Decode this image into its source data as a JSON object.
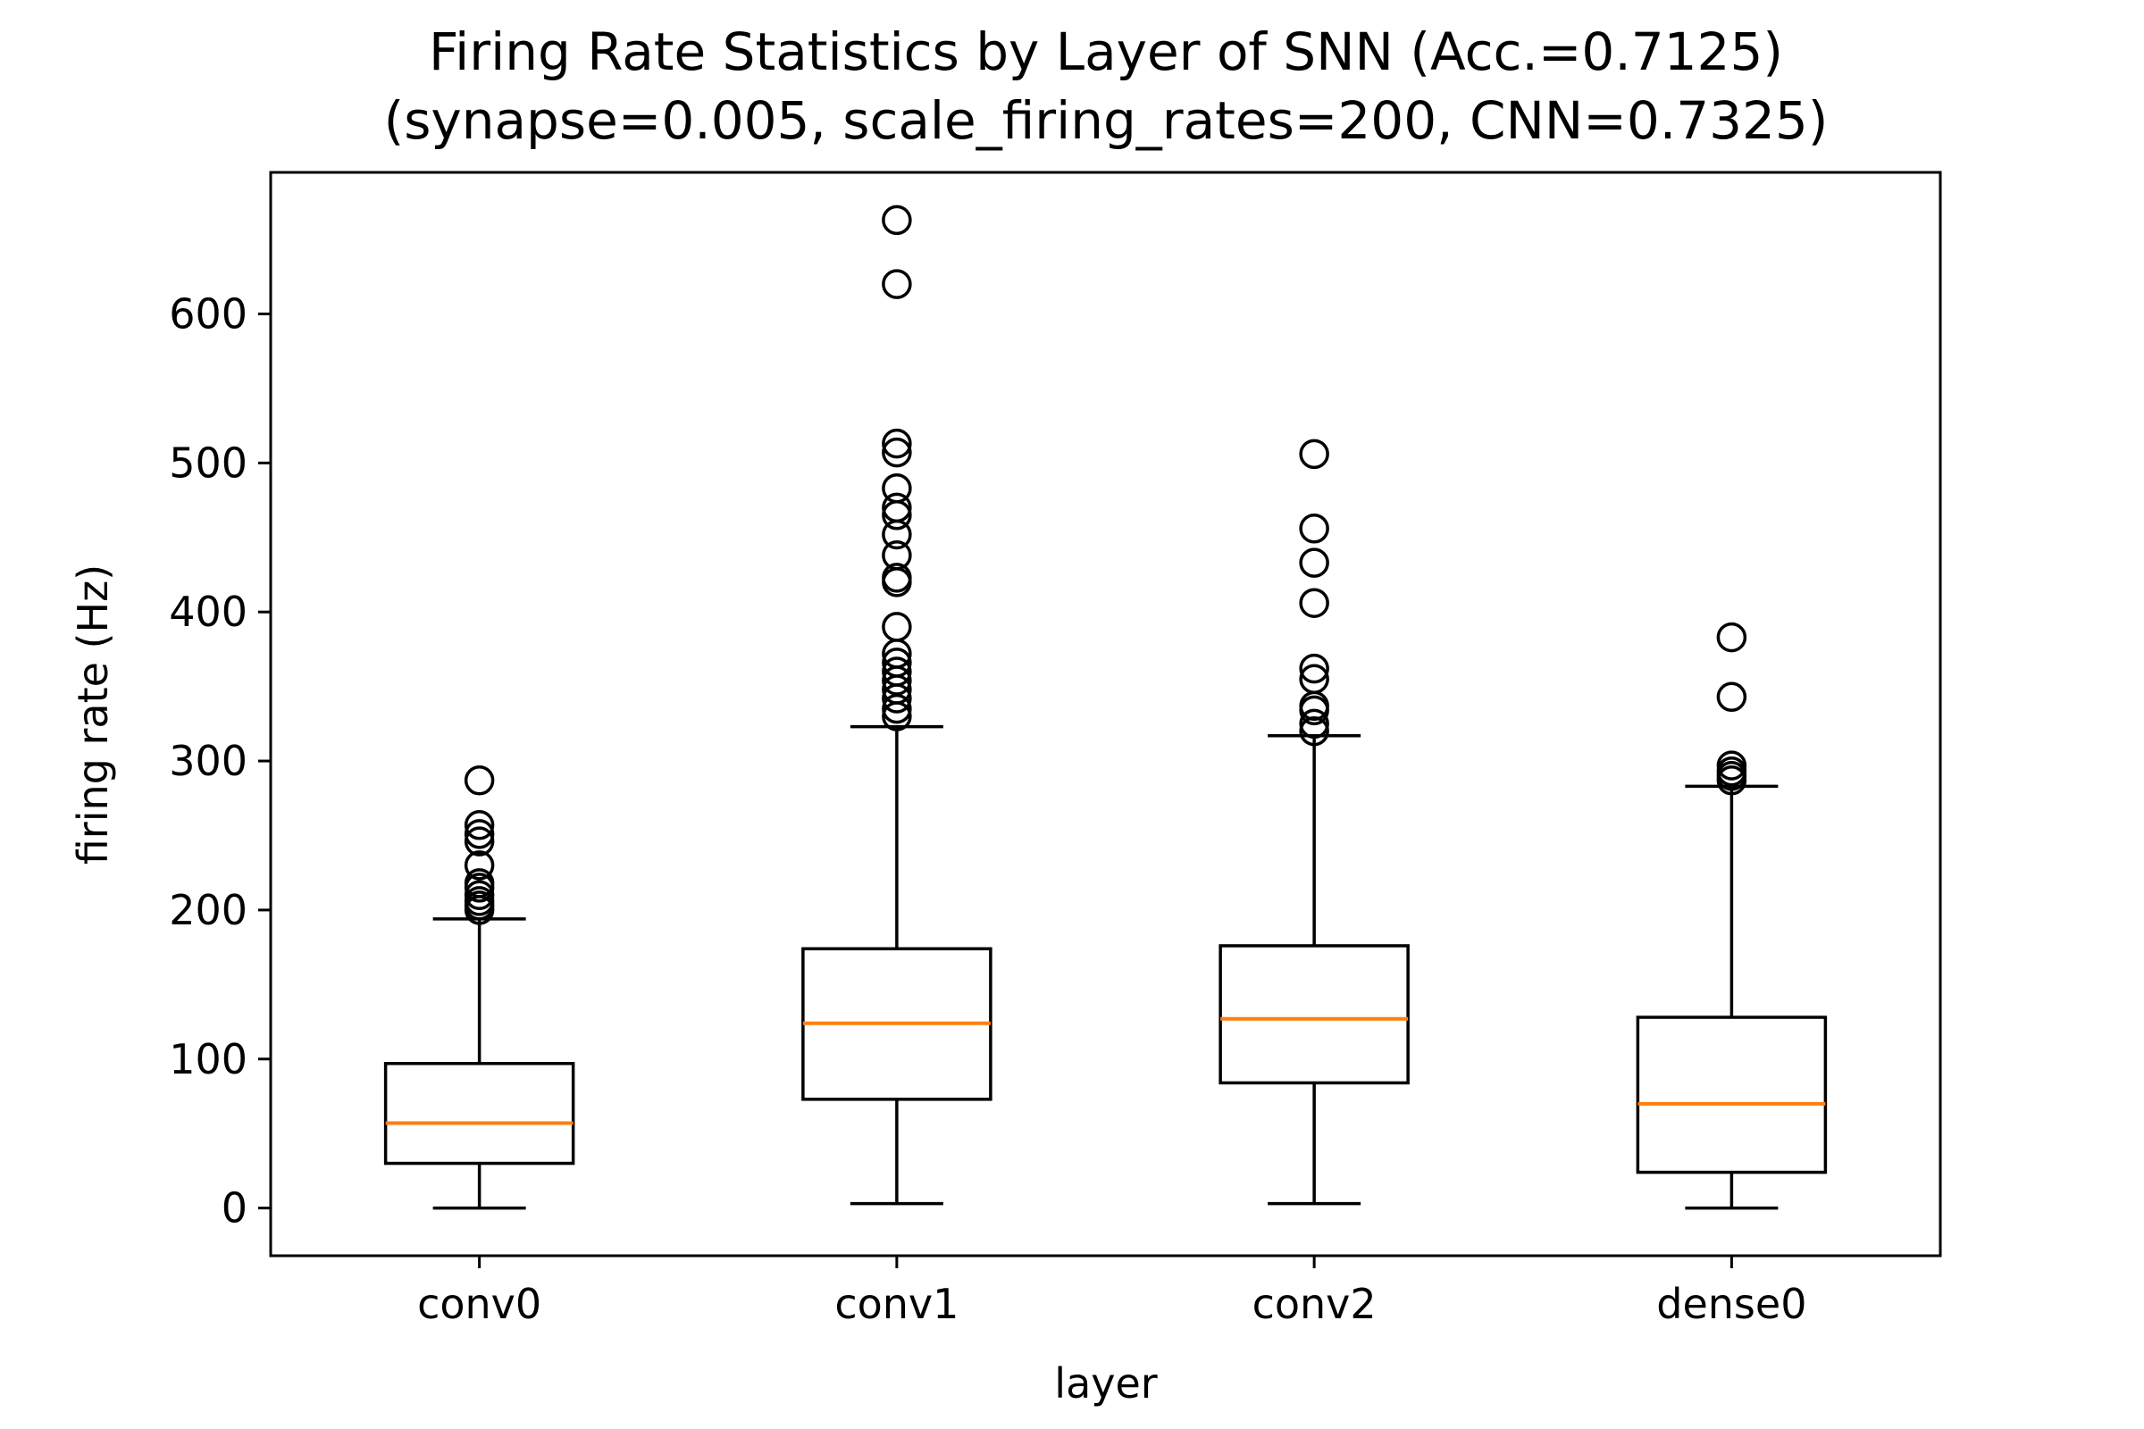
{
  "chart_data": {
    "type": "box",
    "title": "Firing Rate Statistics by Layer of SNN (Acc.=0.7125)",
    "subtitle": "(synapse=0.005, scale_firing_rates=200, CNN=0.7325)",
    "xlabel": "layer",
    "ylabel": "firing rate (Hz)",
    "categories": [
      "conv0",
      "conv1",
      "conv2",
      "dense0"
    ],
    "yticks": [
      0,
      100,
      200,
      300,
      400,
      500,
      600
    ],
    "ylim": [
      -32,
      695
    ],
    "grid": false,
    "boxes": [
      {
        "category": "conv0",
        "whisker_low": 0,
        "q1": 30,
        "median": 57,
        "q3": 97,
        "whisker_high": 194,
        "outliers": [
          200,
          203,
          206,
          210,
          215,
          218,
          230,
          246,
          251,
          257,
          287
        ]
      },
      {
        "category": "conv1",
        "whisker_low": 3,
        "q1": 73,
        "median": 124,
        "q3": 174,
        "whisker_high": 323,
        "outliers": [
          330,
          335,
          342,
          348,
          354,
          360,
          366,
          372,
          390,
          420,
          423,
          438,
          452,
          465,
          470,
          483,
          507,
          513,
          620,
          663
        ]
      },
      {
        "category": "conv2",
        "whisker_low": 3,
        "q1": 84,
        "median": 127,
        "q3": 176,
        "whisker_high": 317,
        "outliers": [
          320,
          325,
          334,
          337,
          355,
          362,
          406,
          433,
          456,
          506
        ]
      },
      {
        "category": "dense0",
        "whisker_low": 0,
        "q1": 24,
        "median": 70,
        "q3": 128,
        "whisker_high": 283,
        "outliers": [
          287,
          290,
          293,
          297,
          343,
          383
        ]
      }
    ],
    "colors": {
      "box": "#000000",
      "median": "#ff7f0e",
      "outlier": "#000000"
    }
  }
}
